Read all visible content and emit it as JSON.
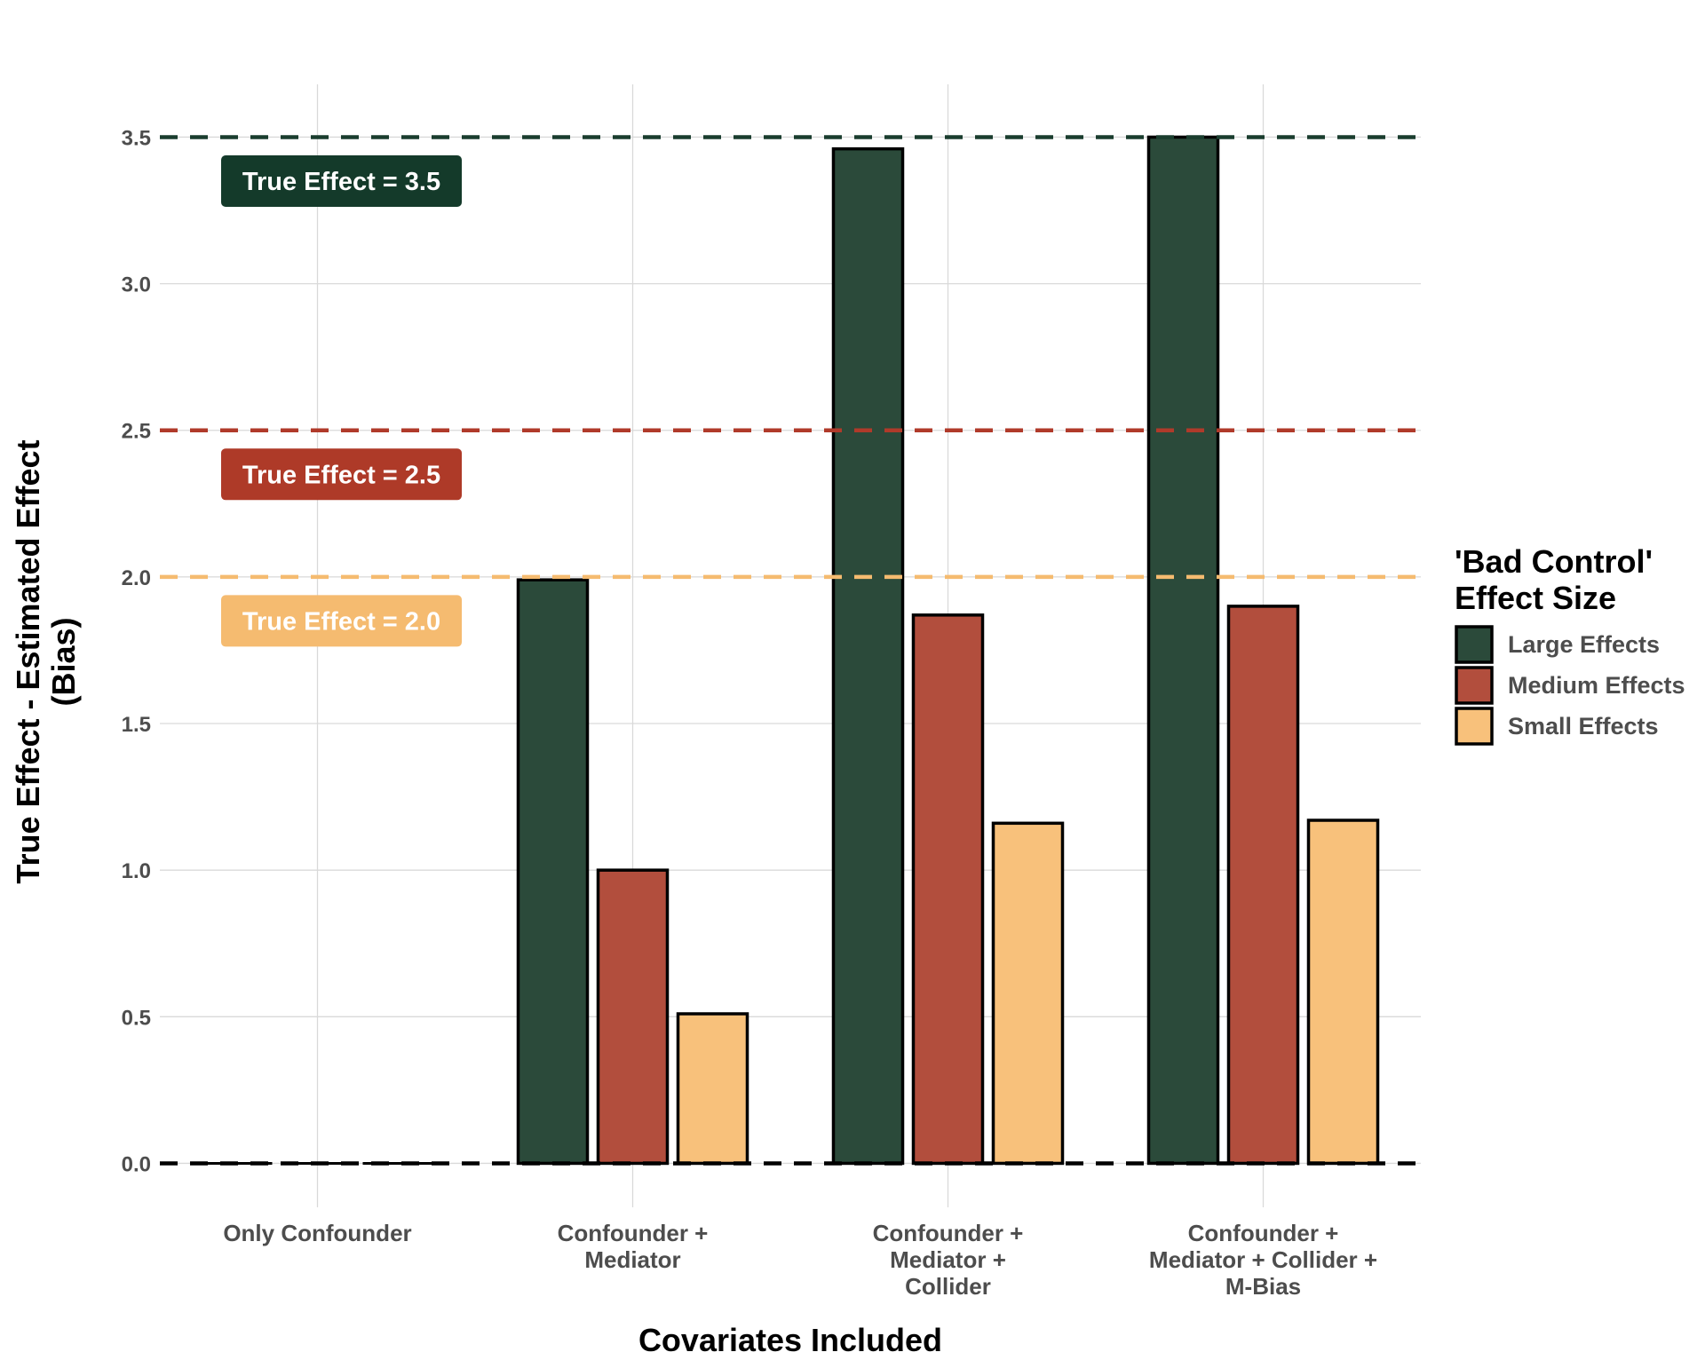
{
  "chart_data": {
    "type": "bar",
    "categories": [
      [
        "Only Confounder"
      ],
      [
        "Confounder +",
        "Mediator"
      ],
      [
        "Confounder +",
        "Mediator +",
        "Collider"
      ],
      [
        "Confounder +",
        "Mediator + Collider +",
        "M-Bias"
      ]
    ],
    "series": [
      {
        "name": "Large Effects",
        "color": "#2b4a3a",
        "values": [
          0.0,
          1.99,
          3.46,
          3.5
        ]
      },
      {
        "name": "Medium Effects",
        "color": "#b24e3d",
        "values": [
          0.0,
          1.0,
          1.87,
          1.9
        ]
      },
      {
        "name": "Small Effects",
        "color": "#f8c17b",
        "values": [
          0.0,
          0.51,
          1.16,
          1.17
        ]
      }
    ],
    "xlabel": "Covariates Included",
    "ylabel": [
      "True Effect - Estimated Effect",
      "(Bias)"
    ],
    "ylim": [
      -0.15,
      3.68
    ],
    "yticks": [
      0.0,
      0.5,
      1.0,
      1.5,
      2.0,
      2.5,
      3.0,
      3.5
    ],
    "ytick_labels": [
      "0.0",
      "0.5",
      "1.0",
      "1.5",
      "2.0",
      "2.5",
      "3.0",
      "3.5"
    ],
    "grid": true,
    "legend": {
      "title": [
        "'Bad Control'",
        "Effect Size"
      ],
      "placement": "right"
    },
    "reference_lines": [
      {
        "y": 3.5,
        "color": "#1a3d2e"
      },
      {
        "y": 2.5,
        "color": "#b03a2a"
      },
      {
        "y": 2.0,
        "color": "#f5bb70"
      },
      {
        "y": 0.0,
        "color": "#000000"
      }
    ],
    "annotations": [
      {
        "text": "True Effect = 3.5",
        "y": 3.35,
        "color": "#143a2a"
      },
      {
        "text": "True Effect = 2.5",
        "y": 2.35,
        "color": "#ae3a28"
      },
      {
        "text": "True Effect = 2.0",
        "y": 1.85,
        "color": "#f5bb70"
      }
    ]
  }
}
